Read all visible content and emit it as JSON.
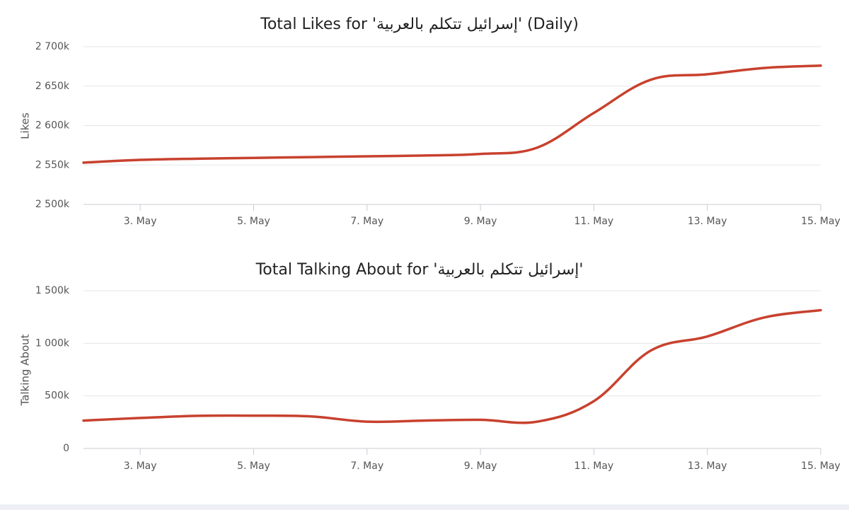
{
  "chart_data": [
    {
      "type": "line",
      "title": "Total Likes for 'إسرائيل تتكلم بالعربية' (Daily)",
      "xlabel": "",
      "ylabel": "Likes",
      "ylim": [
        2500000,
        2700000
      ],
      "y_ticks": [
        2500000,
        2550000,
        2600000,
        2650000,
        2700000
      ],
      "y_tick_labels": [
        "2 500k",
        "2 550k",
        "2 600k",
        "2 650k",
        "2 700k"
      ],
      "x_range": [
        2,
        15
      ],
      "x_ticks": [
        3,
        5,
        7,
        9,
        11,
        13,
        15
      ],
      "x_tick_labels": [
        "3. May",
        "5. May",
        "7. May",
        "9. May",
        "11. May",
        "13. May",
        "15. May"
      ],
      "grid": true,
      "color": "#c8412e",
      "series": [
        {
          "x": [
            2,
            3,
            4,
            5,
            6,
            7,
            8,
            9,
            10,
            11,
            12,
            13,
            14,
            15
          ],
          "values": [
            2553000,
            2556500,
            2558000,
            2559000,
            2560000,
            2561000,
            2562000,
            2564000,
            2572000,
            2616000,
            2658000,
            2665000,
            2673000,
            2676000
          ]
        }
      ]
    },
    {
      "type": "line",
      "title": "Total Talking About for 'إسرائيل تتكلم بالعربية'",
      "xlabel": "",
      "ylabel": "Talking About",
      "ylim": [
        0,
        1500000
      ],
      "y_ticks": [
        0,
        500000,
        1000000,
        1500000
      ],
      "y_tick_labels": [
        "0",
        "500k",
        "1 000k",
        "1 500k"
      ],
      "x_range": [
        2,
        15
      ],
      "x_ticks": [
        3,
        5,
        7,
        9,
        11,
        13,
        15
      ],
      "x_tick_labels": [
        "3. May",
        "5. May",
        "7. May",
        "9. May",
        "11. May",
        "13. May",
        "15. May"
      ],
      "grid": true,
      "color": "#c8412e",
      "series": [
        {
          "x": [
            2,
            3,
            4,
            5,
            6,
            7,
            8,
            9,
            10,
            11,
            12,
            13,
            14,
            15
          ],
          "values": [
            265000,
            290000,
            310000,
            312000,
            305000,
            255000,
            265000,
            272000,
            255000,
            450000,
            930000,
            1065000,
            1245000,
            1315000
          ]
        }
      ]
    }
  ]
}
